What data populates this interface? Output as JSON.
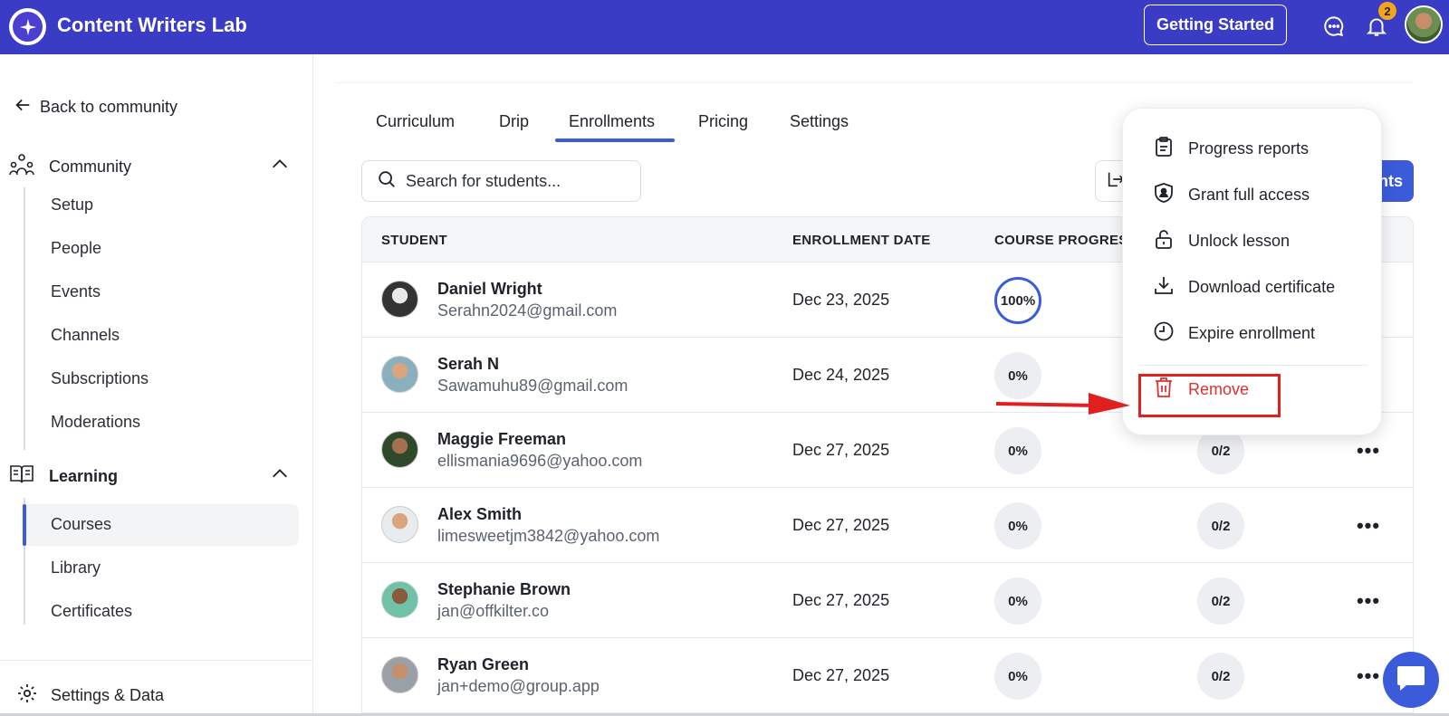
{
  "header": {
    "brand": "Content Writers Lab",
    "getting_started": "Getting Started",
    "notification_count": "2"
  },
  "sidebar": {
    "back": "Back to community",
    "community": {
      "label": "Community",
      "items": [
        "Setup",
        "People",
        "Events",
        "Channels",
        "Subscriptions",
        "Moderations"
      ]
    },
    "learning": {
      "label": "Learning",
      "items": [
        "Courses",
        "Library",
        "Certificates"
      ],
      "active": "Courses"
    },
    "settings": "Settings & Data"
  },
  "tabs": [
    "Curriculum",
    "Drip",
    "Enrollments",
    "Pricing",
    "Settings"
  ],
  "active_tab": "Enrollments",
  "search": {
    "placeholder": "Search for students..."
  },
  "add_button_partial": "nts",
  "table": {
    "headers": {
      "student": "STUDENT",
      "date": "ENROLLMENT DATE",
      "progress": "COURSE PROGRES"
    },
    "rows": [
      {
        "name": "Daniel Wright",
        "email": "Serahn2024@gmail.com",
        "date": "Dec 23, 2025",
        "progress": "100%",
        "lessons": ""
      },
      {
        "name": "Serah N",
        "email": "Sawamuhu89@gmail.com",
        "date": "Dec 24, 2025",
        "progress": "0%",
        "lessons": ""
      },
      {
        "name": "Maggie Freeman",
        "email": "ellismania9696@yahoo.com",
        "date": "Dec 27, 2025",
        "progress": "0%",
        "lessons": "0/2"
      },
      {
        "name": "Alex Smith",
        "email": "limesweetjm3842@yahoo.com",
        "date": "Dec 27, 2025",
        "progress": "0%",
        "lessons": "0/2"
      },
      {
        "name": "Stephanie Brown",
        "email": "jan@offkilter.co",
        "date": "Dec 27, 2025",
        "progress": "0%",
        "lessons": "0/2"
      },
      {
        "name": "Ryan Green",
        "email": "jan+demo@group.app",
        "date": "Dec 27, 2025",
        "progress": "0%",
        "lessons": "0/2"
      }
    ]
  },
  "menu": {
    "items": [
      "Progress reports",
      "Grant full access",
      "Unlock lesson",
      "Download certificate",
      "Expire enrollment"
    ],
    "remove": "Remove"
  },
  "colors": {
    "header": "#3b3cc6",
    "accent": "#3b5bdb",
    "danger": "#e03131",
    "badge": "#f2a51a"
  }
}
